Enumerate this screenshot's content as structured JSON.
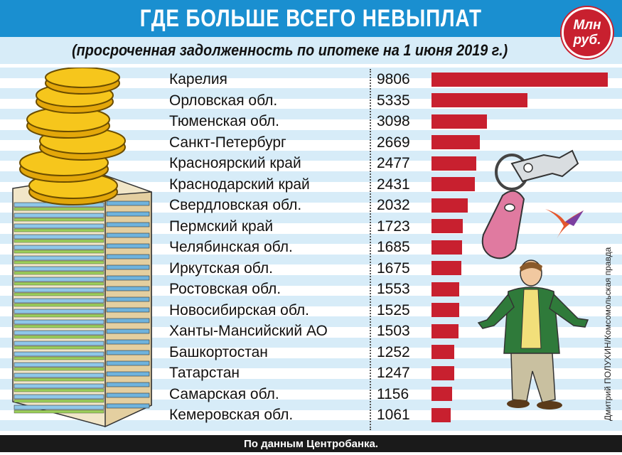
{
  "title": "ГДЕ БОЛЬШЕ ВСЕГО НЕВЫПЛАТ",
  "subtitle": "(просроченная задолженность по ипотеке на 1 июня 2019 г.)",
  "unit_badge": {
    "line1": "Млн",
    "line2": "руб."
  },
  "footer": "По данным Центробанка.",
  "credit": "Дмитрий ПОЛУХИН/Комсомольская правда",
  "colors": {
    "header": "#1a8fd0",
    "stripe": "#d7ecf8",
    "bar": "#c8202f",
    "footer": "#1a1a1a"
  },
  "chart_data": {
    "type": "bar",
    "orientation": "horizontal",
    "title": "ГДЕ БОЛЬШЕ ВСЕГО НЕВЫПЛАТ",
    "subtitle": "(просроченная задолженность по ипотеке на 1 июня 2019 г.)",
    "unit": "Млн руб.",
    "categories": [
      "Карелия",
      "Орловская обл.",
      "Тюменская обл.",
      "Санкт-Петербург",
      "Красноярский край",
      "Краснодарский край",
      "Свердловская обл.",
      "Пермский край",
      "Челябинская обл.",
      "Иркутская обл.",
      "Ростовская обл.",
      "Новосибирская обл.",
      "Ханты-Мансийский АО",
      "Башкортостан",
      "Татарстан",
      "Самарская обл.",
      "Кемеровская обл."
    ],
    "values": [
      9806,
      5335,
      3098,
      2669,
      2477,
      2431,
      2032,
      1723,
      1685,
      1675,
      1553,
      1525,
      1503,
      1252,
      1247,
      1156,
      1061
    ],
    "value_labels": [
      "9806",
      "5335",
      "3098",
      "2669",
      "2477",
      "2431",
      "2032",
      "1723",
      "1685",
      "1675",
      "1553",
      "1525",
      "1503",
      "1252",
      "1247",
      "1156",
      "1061"
    ],
    "xlim": [
      0,
      9806
    ],
    "source": "По данным Центробанка."
  }
}
